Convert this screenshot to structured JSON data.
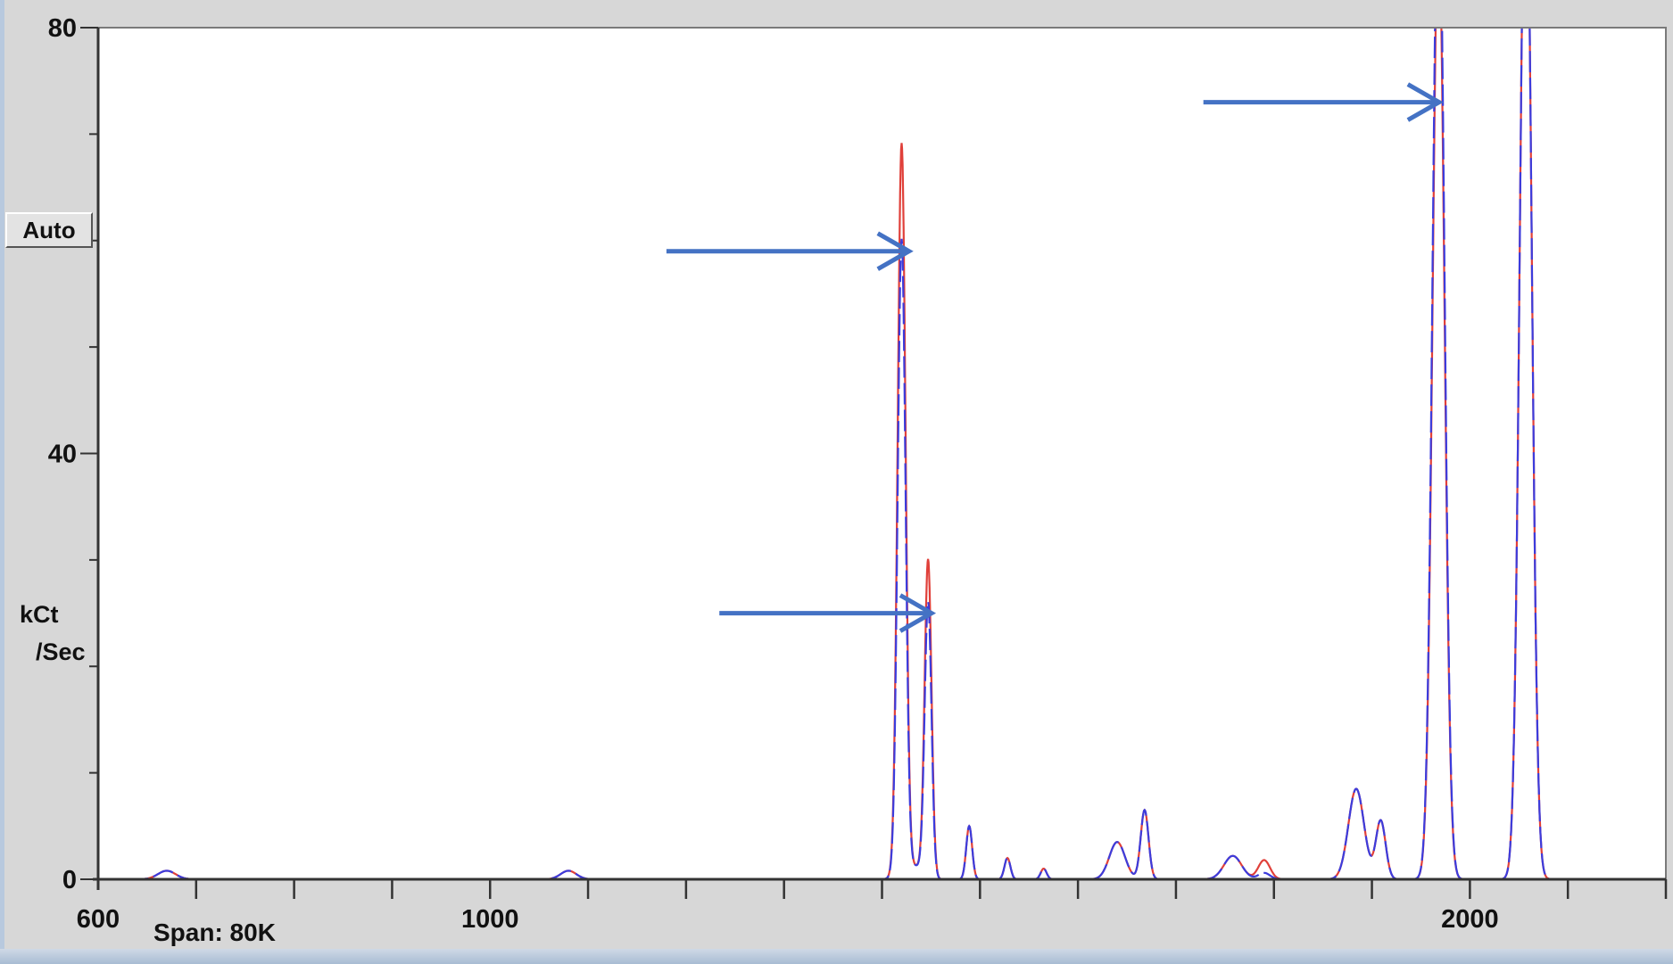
{
  "chart_data": {
    "type": "line",
    "xlim": [
      600,
      2200
    ],
    "ylim": [
      0,
      80
    ],
    "y_ticks": [
      {
        "value": 0,
        "label": "0"
      },
      {
        "value": 40,
        "label": "40"
      },
      {
        "value": 80,
        "label": "80"
      }
    ],
    "x_ticks": [
      {
        "value": 600,
        "label": "600"
      },
      {
        "value": 1000,
        "label": "1000"
      },
      {
        "value": 2000,
        "label": "2000"
      }
    ],
    "ylabel_line1": "kCt",
    "ylabel_line2": "/Sec",
    "span_label": "Span: 80K",
    "grid": false,
    "series": [
      {
        "color": "#e0403a",
        "peaks": [
          {
            "x": 670,
            "y": 0.8,
            "w": 9
          },
          {
            "x": 1080,
            "y": 0.8,
            "w": 8
          },
          {
            "x": 1422,
            "y": 1.2,
            "w": 7
          },
          {
            "x": 1436,
            "y": 1.0,
            "w": 5
          },
          {
            "x": 1420,
            "y": 68,
            "w": 4
          },
          {
            "x": 1447,
            "y": 30,
            "w": 3.5
          },
          {
            "x": 1489,
            "y": 5,
            "w": 3
          },
          {
            "x": 1528,
            "y": 2,
            "w": 3
          },
          {
            "x": 1565,
            "y": 1,
            "w": 3
          },
          {
            "x": 1640,
            "y": 3.5,
            "w": 8
          },
          {
            "x": 1668,
            "y": 6.5,
            "w": 4
          },
          {
            "x": 1758,
            "y": 2.2,
            "w": 9
          },
          {
            "x": 1790,
            "y": 1.8,
            "w": 6
          },
          {
            "x": 1884,
            "y": 8.5,
            "w": 8
          },
          {
            "x": 1909,
            "y": 5.5,
            "w": 5
          },
          {
            "x": 1968,
            "y": 90,
            "w": 6
          },
          {
            "x": 2057,
            "y": 100,
            "w": 6
          }
        ]
      },
      {
        "color": "#3c3cdc",
        "peaks": [
          {
            "x": 670,
            "y": 0.8,
            "w": 9
          },
          {
            "x": 1080,
            "y": 0.8,
            "w": 8
          },
          {
            "x": 1422,
            "y": 1.2,
            "w": 7
          },
          {
            "x": 1436,
            "y": 1.0,
            "w": 5
          },
          {
            "x": 1420,
            "y": 59,
            "w": 4
          },
          {
            "x": 1447,
            "y": 26,
            "w": 3.5
          },
          {
            "x": 1489,
            "y": 5,
            "w": 3
          },
          {
            "x": 1528,
            "y": 2,
            "w": 3
          },
          {
            "x": 1565,
            "y": 1,
            "w": 3
          },
          {
            "x": 1640,
            "y": 3.5,
            "w": 8
          },
          {
            "x": 1668,
            "y": 6.5,
            "w": 4
          },
          {
            "x": 1758,
            "y": 2.2,
            "w": 9
          },
          {
            "x": 1790,
            "y": 0.6,
            "w": 6
          },
          {
            "x": 1884,
            "y": 8.5,
            "w": 8
          },
          {
            "x": 1909,
            "y": 5.5,
            "w": 5
          },
          {
            "x": 1968,
            "y": 96,
            "w": 6
          },
          {
            "x": 2057,
            "y": 100,
            "w": 6
          }
        ]
      }
    ],
    "annotations": [
      {
        "type": "arrow",
        "from": [
          1180,
          59
        ],
        "to": [
          1423,
          59
        ]
      },
      {
        "type": "arrow",
        "from": [
          1234,
          25
        ],
        "to": [
          1446,
          25
        ]
      },
      {
        "type": "arrow",
        "from": [
          1728,
          73
        ],
        "to": [
          1964,
          73
        ]
      }
    ]
  },
  "controls": {
    "auto_label": "Auto"
  },
  "colors": {
    "arrow": "#4472c4",
    "plot_background": "#ffffff",
    "window_background": "#d7d7d7"
  }
}
